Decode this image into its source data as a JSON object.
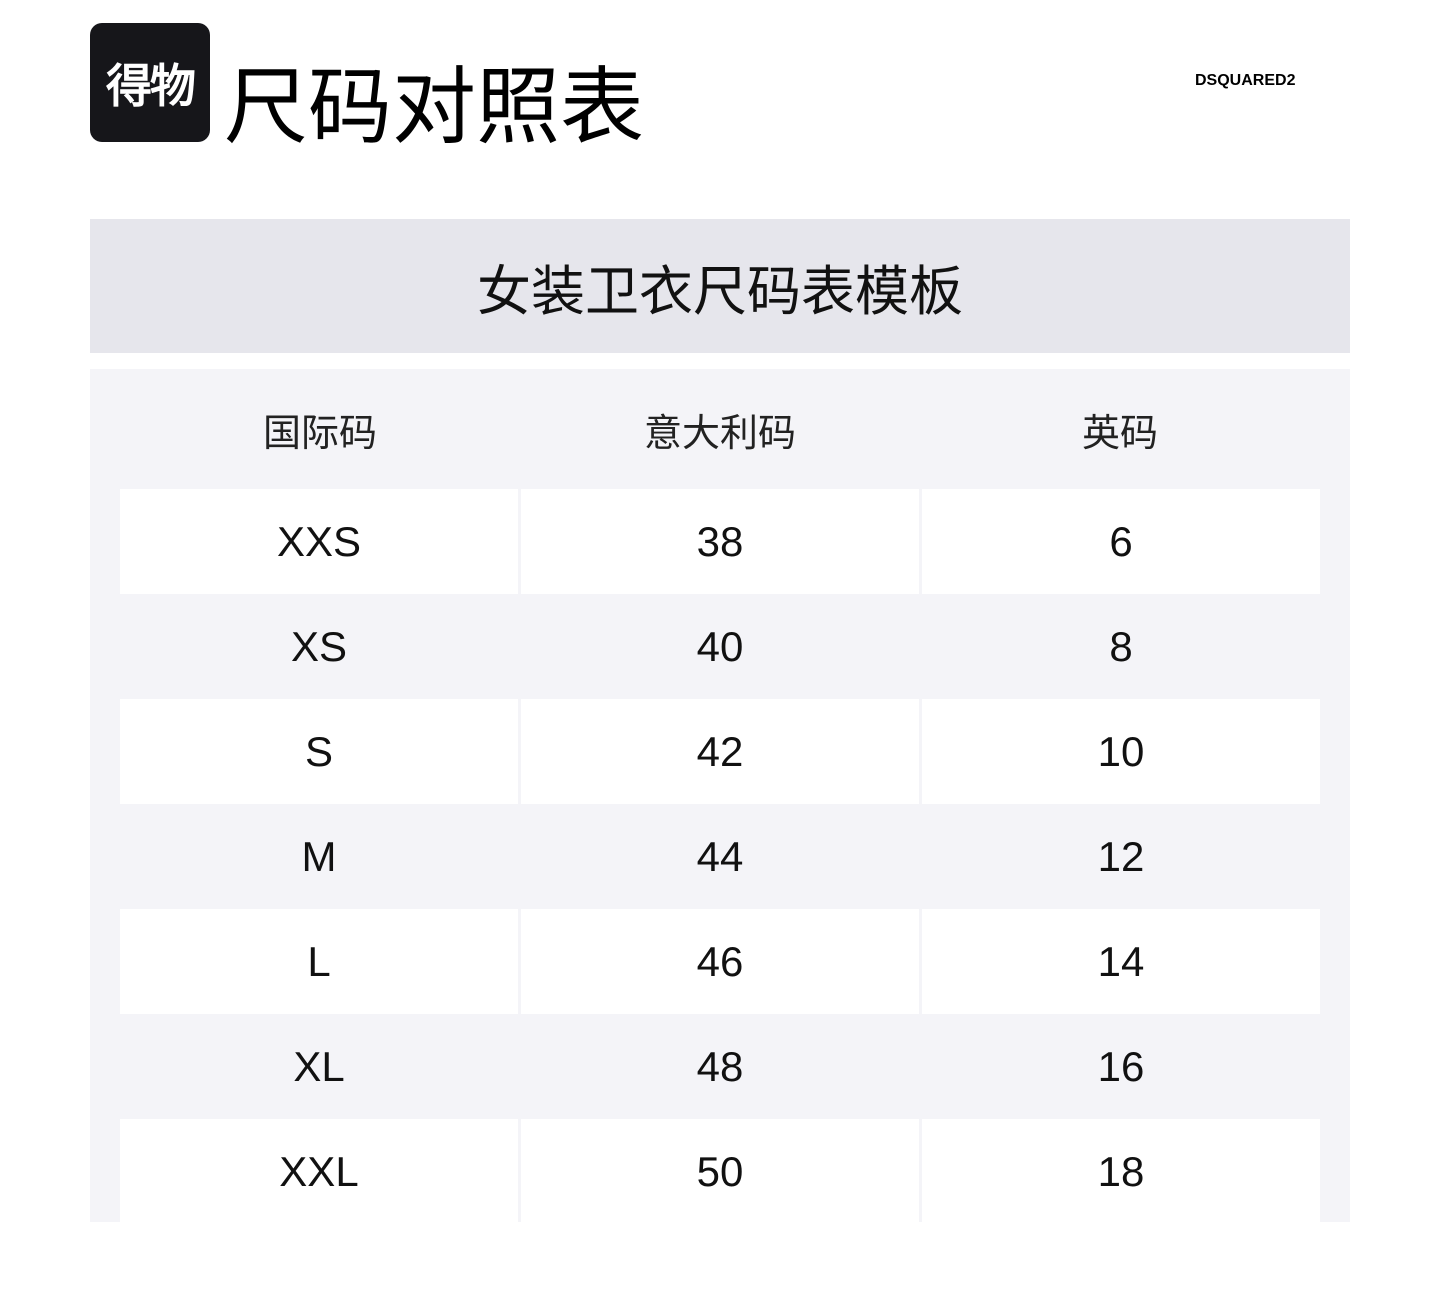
{
  "header": {
    "logo_text": "得物",
    "title": "尺码对照表",
    "brand": "DSQUARED2"
  },
  "banner": {
    "title": "女装卫衣尺码表模板"
  },
  "table": {
    "columns": [
      "国际码",
      "意大利码",
      "英码"
    ],
    "rows": [
      [
        "XXS",
        "38",
        "6"
      ],
      [
        "XS",
        "40",
        "8"
      ],
      [
        "S",
        "42",
        "10"
      ],
      [
        "M",
        "44",
        "12"
      ],
      [
        "L",
        "46",
        "14"
      ],
      [
        "XL",
        "48",
        "16"
      ],
      [
        "XXL",
        "50",
        "18"
      ]
    ]
  }
}
